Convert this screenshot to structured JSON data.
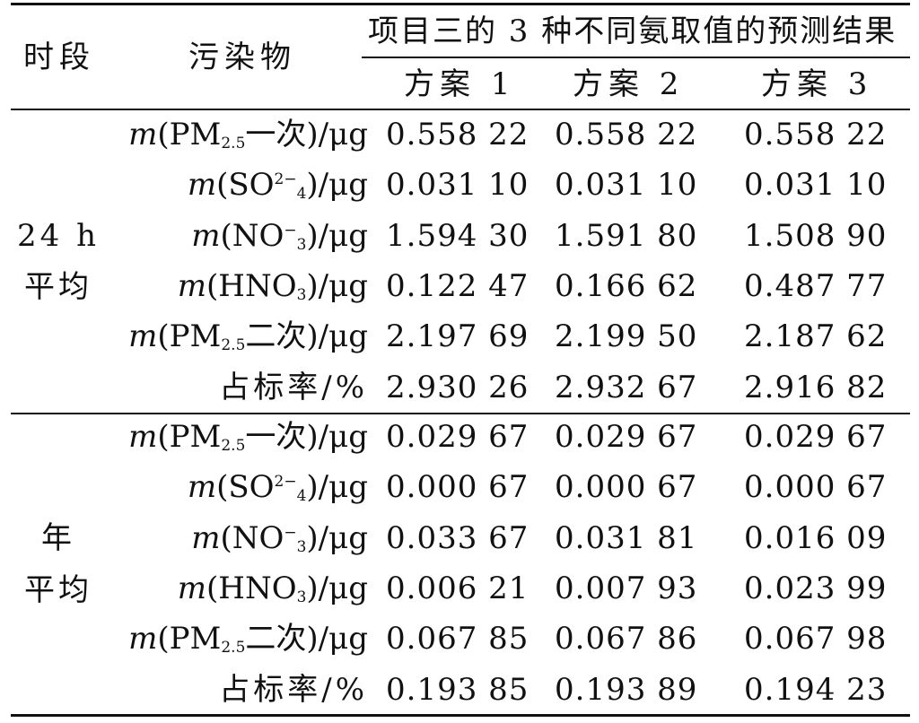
{
  "headers": {
    "period": "时段",
    "pollutant": "污染物",
    "group": "项目三的 3 种不同氨取值的预测结果",
    "schemes": [
      "方案 1",
      "方案 2",
      "方案 3"
    ]
  },
  "sections": [
    {
      "period_lines": [
        "24 h",
        "平均"
      ],
      "rows": [
        {
          "pollutant": {
            "pre": "(PM",
            "sub": "2.5",
            "sup": "",
            "post": "一次)/μg"
          },
          "values": [
            "0.558 22",
            "0.558 22",
            "0.558 22"
          ]
        },
        {
          "pollutant": {
            "pre": "(SO",
            "sub": "4",
            "sup": "2−",
            "post": ")/μg"
          },
          "values": [
            "0.031 10",
            "0.031 10",
            "0.031 10"
          ]
        },
        {
          "pollutant": {
            "pre": "(NO",
            "sub": "3",
            "sup": "−",
            "post": ")/μg"
          },
          "values": [
            "1.594 30",
            "1.591 80",
            "1.508 90"
          ]
        },
        {
          "pollutant": {
            "pre": "(HNO",
            "sub": "3",
            "sup": "",
            "post": ")/μg"
          },
          "values": [
            "0.122 47",
            "0.166 62",
            "0.487 77"
          ]
        },
        {
          "pollutant": {
            "pre": "(PM",
            "sub": "2.5",
            "sup": "",
            "post": "二次)/μg"
          },
          "values": [
            "2.197 69",
            "2.199 50",
            "2.187 62"
          ]
        },
        {
          "plain": "占标率/%",
          "values": [
            "2.930 26",
            "2.932 67",
            "2.916 82"
          ]
        }
      ]
    },
    {
      "period_lines": [
        "年",
        "平均"
      ],
      "rows": [
        {
          "pollutant": {
            "pre": "(PM",
            "sub": "2.5",
            "sup": "",
            "post": "一次)/μg"
          },
          "values": [
            "0.029 67",
            "0.029 67",
            "0.029 67"
          ]
        },
        {
          "pollutant": {
            "pre": "(SO",
            "sub": "4",
            "sup": "2−",
            "post": ")/μg"
          },
          "values": [
            "0.000 67",
            "0.000 67",
            "0.000 67"
          ]
        },
        {
          "pollutant": {
            "pre": "(NO",
            "sub": "3",
            "sup": "−",
            "post": ")/μg"
          },
          "values": [
            "0.033 67",
            "0.031 81",
            "0.016 09"
          ]
        },
        {
          "pollutant": {
            "pre": "(HNO",
            "sub": "3",
            "sup": "",
            "post": ")/μg"
          },
          "values": [
            "0.006 21",
            "0.007 93",
            "0.023 99"
          ]
        },
        {
          "pollutant": {
            "pre": "(PM",
            "sub": "2.5",
            "sup": "",
            "post": "二次)/μg"
          },
          "values": [
            "0.067 85",
            "0.067 86",
            "0.067 98"
          ]
        },
        {
          "plain": "占标率/%",
          "values": [
            "0.193 85",
            "0.193 89",
            "0.194 23"
          ]
        }
      ]
    }
  ],
  "mass_symbol": "m"
}
